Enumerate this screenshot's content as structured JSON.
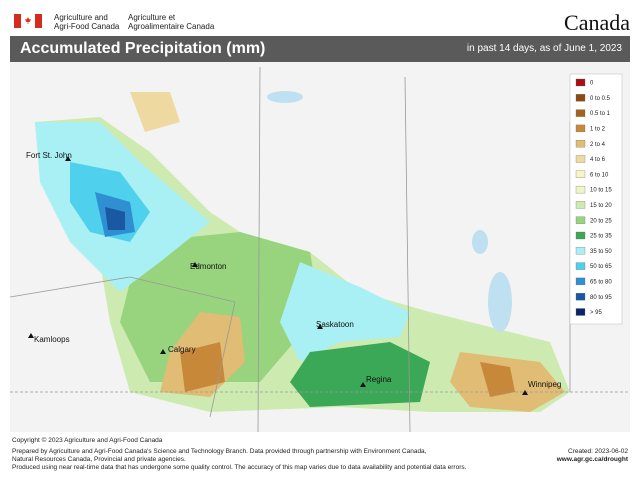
{
  "header": {
    "agency_en": "Agriculture and\nAgri-Food Canada",
    "agency_fr": "Agriculture et\nAgroalimentaire Canada",
    "wordmark": "Canada",
    "title": "Accumulated Precipitation (mm)",
    "subtitle": "in past 14 days, as of June 1, 2023"
  },
  "legend": [
    {
      "label": "0",
      "color": "#a50f15"
    },
    {
      "label": "0 to 0.5",
      "color": "#8c4a12"
    },
    {
      "label": "0.5 to 1",
      "color": "#a8621f"
    },
    {
      "label": "1 to 2",
      "color": "#c8883a"
    },
    {
      "label": "2 to 4",
      "color": "#e0bc74"
    },
    {
      "label": "4 to 6",
      "color": "#eed9a0"
    },
    {
      "label": "6 to 10",
      "color": "#f8f4c4"
    },
    {
      "label": "10 to 15",
      "color": "#eef6c8"
    },
    {
      "label": "15 to 20",
      "color": "#cdebb0"
    },
    {
      "label": "20 to 25",
      "color": "#98d47e"
    },
    {
      "label": "25 to 35",
      "color": "#3aa856"
    },
    {
      "label": "35 to 50",
      "color": "#a8f0f4"
    },
    {
      "label": "50 to 65",
      "color": "#4fd0ec"
    },
    {
      "label": "65 to 80",
      "color": "#2f8fd0"
    },
    {
      "label": "80 to 95",
      "color": "#1b58a4"
    },
    {
      "label": "> 95",
      "color": "#0b2668"
    }
  ],
  "cities": [
    "Fort St. John",
    "Edmonton",
    "Kamloops",
    "Calgary",
    "Saskatoon",
    "Regina",
    "Winnipeg"
  ],
  "copyright": "Copyright © 2023 Agriculture and Agri-Food Canada",
  "footer": {
    "notes": [
      "Prepared by Agriculture and Agri-Food Canada's Science and Technology Branch. Data provided through partnership with Environment Canada,",
      "Natural Resources Canada, Provincial and private agencies.",
      "Produced using near real-time data that has undergone some quality control. The accuracy of this map varies due to data availability and potential data errors."
    ],
    "created": "Created: 2023-06-02",
    "url": "www.agr.gc.ca/drought"
  }
}
